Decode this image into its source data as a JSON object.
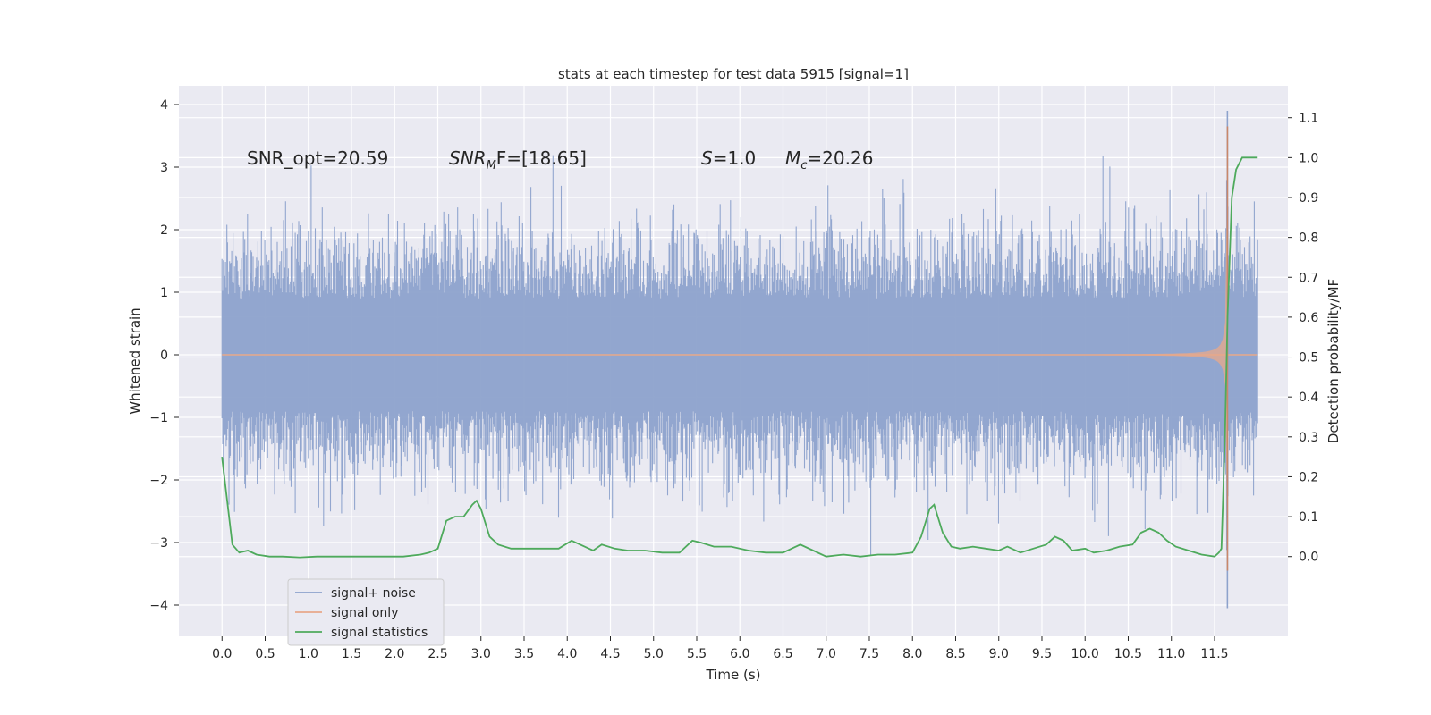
{
  "chart_data": {
    "type": "line",
    "title": "stats at each timestep for test data 5915 [signal=1]",
    "xlabel": "Time (s)",
    "ylabel": "Whitened strain",
    "ylabel_right": "Detection probability/MF",
    "xlim": [
      -0.5,
      12.35
    ],
    "ylim": [
      -4.5,
      4.3
    ],
    "ylim_right": [
      -0.2,
      1.18
    ],
    "grid": true,
    "legend_position": "lower-left",
    "x_ticks": [
      "0.0",
      "0.5",
      "1.0",
      "1.5",
      "2.0",
      "2.5",
      "3.0",
      "3.5",
      "4.0",
      "4.5",
      "5.0",
      "5.5",
      "6.0",
      "6.5",
      "7.0",
      "7.5",
      "8.0",
      "8.5",
      "9.0",
      "9.5",
      "10.0",
      "10.5",
      "11.0",
      "11.5"
    ],
    "y_ticks_left": [
      "−4",
      "−3",
      "−2",
      "−1",
      "0",
      "1",
      "2",
      "3",
      "4"
    ],
    "y_ticks_right": [
      "0.0",
      "0.1",
      "0.2",
      "0.3",
      "0.4",
      "0.5",
      "0.6",
      "0.7",
      "0.8",
      "0.9",
      "1.0",
      "1.1"
    ],
    "annotations": {
      "snr_opt": "SNR_opt=20.59",
      "snr_mf_italic": "SNR",
      "snr_mf_sub": "M",
      "snr_mf_tail": "F=[18.65]",
      "s_italic": "S",
      "s_tail": "=1.0",
      "mc_italic": "M",
      "mc_sub": "c",
      "mc_tail": "=20.26"
    },
    "series": [
      {
        "name": "signal+ noise",
        "color": "#8da2cc",
        "description_envelope": {
          "x_range": [
            0.0,
            12.0
          ],
          "upper_peak_level": 2.0,
          "lower_peak_level": -2.0,
          "max_value": 3.9,
          "min_value": -4.05,
          "peak_time": 11.65
        }
      },
      {
        "name": "signal only",
        "color": "#e8a88a",
        "chirp": {
          "start_time": 0.0,
          "merger_time": 11.65,
          "end_time": 12.0,
          "peak_amplitude": 3.65,
          "min_amplitude": -3.45
        }
      },
      {
        "name": "signal statistics",
        "color": "#4eaa5c",
        "axis": "right",
        "x": [
          0.0,
          0.12,
          0.2,
          0.3,
          0.4,
          0.55,
          0.7,
          0.9,
          1.1,
          1.3,
          1.5,
          1.7,
          1.9,
          2.1,
          2.3,
          2.4,
          2.5,
          2.6,
          2.7,
          2.8,
          2.9,
          2.95,
          3.0,
          3.1,
          3.2,
          3.35,
          3.5,
          3.7,
          3.9,
          4.05,
          4.15,
          4.3,
          4.4,
          4.55,
          4.7,
          4.9,
          5.1,
          5.3,
          5.45,
          5.55,
          5.7,
          5.9,
          6.1,
          6.3,
          6.5,
          6.6,
          6.7,
          6.85,
          7.0,
          7.2,
          7.4,
          7.6,
          7.8,
          8.0,
          8.1,
          8.2,
          8.25,
          8.35,
          8.45,
          8.55,
          8.7,
          8.85,
          9.0,
          9.1,
          9.25,
          9.4,
          9.55,
          9.65,
          9.75,
          9.85,
          10.0,
          10.1,
          10.25,
          10.4,
          10.55,
          10.65,
          10.75,
          10.85,
          10.95,
          11.05,
          11.2,
          11.35,
          11.5,
          11.55,
          11.58,
          11.62,
          11.65,
          11.7,
          11.75,
          11.82,
          11.9,
          12.0
        ],
        "y": [
          0.25,
          0.03,
          0.01,
          0.015,
          0.005,
          0.0,
          0.0,
          -0.002,
          0.0,
          0.0,
          0.0,
          0.0,
          0.0,
          0.0,
          0.005,
          0.01,
          0.02,
          0.09,
          0.1,
          0.1,
          0.13,
          0.14,
          0.12,
          0.05,
          0.03,
          0.02,
          0.02,
          0.02,
          0.02,
          0.04,
          0.03,
          0.015,
          0.03,
          0.02,
          0.015,
          0.015,
          0.01,
          0.01,
          0.04,
          0.035,
          0.025,
          0.025,
          0.015,
          0.01,
          0.01,
          0.02,
          0.03,
          0.015,
          0.0,
          0.005,
          0.0,
          0.005,
          0.005,
          0.01,
          0.05,
          0.12,
          0.13,
          0.06,
          0.025,
          0.02,
          0.025,
          0.02,
          0.015,
          0.025,
          0.01,
          0.02,
          0.03,
          0.05,
          0.04,
          0.015,
          0.02,
          0.01,
          0.015,
          0.025,
          0.03,
          0.06,
          0.07,
          0.06,
          0.04,
          0.025,
          0.015,
          0.005,
          0.0,
          0.01,
          0.02,
          0.3,
          0.6,
          0.9,
          0.97,
          1.0,
          1.0,
          1.0
        ]
      }
    ]
  }
}
